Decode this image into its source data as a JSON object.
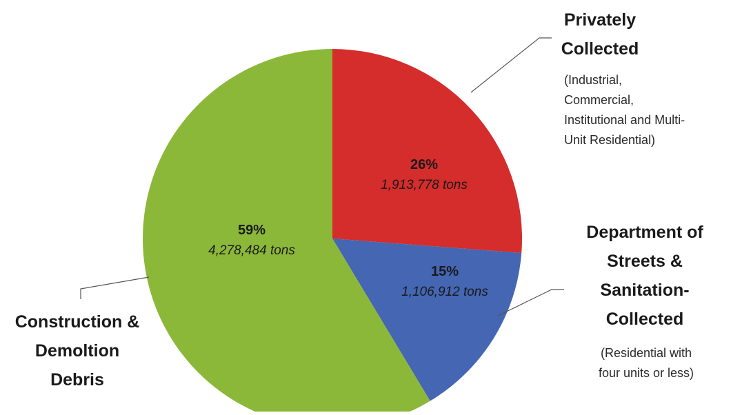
{
  "chart_data": {
    "type": "pie",
    "slices": [
      {
        "title_lines": [
          "Privately",
          "Collected"
        ],
        "note_lines": [
          "(Industrial,",
          "Commercial,",
          "Institutional and Multi-",
          "Unit Residential)"
        ],
        "percent_label": "26%",
        "tons_label": "1,913,778 tons",
        "value": 1913778,
        "color": "#d52c2c"
      },
      {
        "title_lines": [
          "Department of",
          "Streets &",
          "Sanitation-",
          "Collected"
        ],
        "note_lines": [
          "(Residential with",
          "four units or less)"
        ],
        "percent_label": "15%",
        "tons_label": "1,106,912 tons",
        "value": 1106912,
        "color": "#4466b3"
      },
      {
        "title_lines": [
          "Construction &",
          "Demoltion",
          "Debris"
        ],
        "note_lines": [],
        "percent_label": "59%",
        "tons_label": "4,278,484 tons",
        "value": 4278484,
        "color": "#8cb83a"
      }
    ],
    "start_angle": "12 o'clock",
    "direction": "clockwise",
    "legend": "none"
  }
}
